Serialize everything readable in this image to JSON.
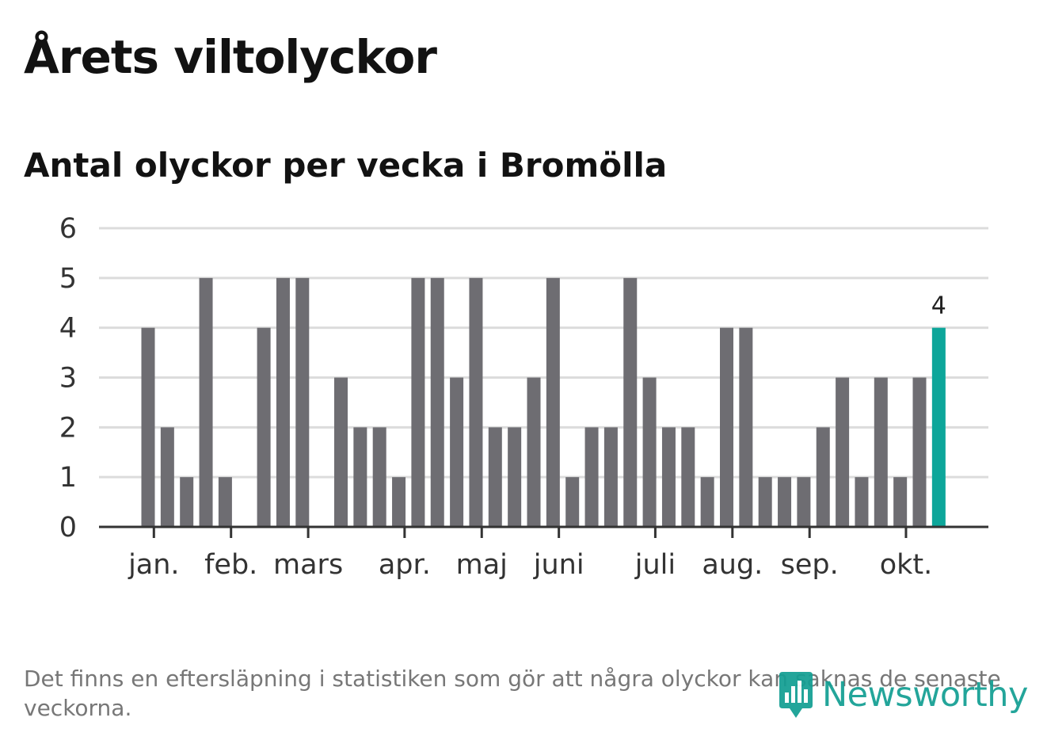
{
  "title": "Årets viltolyckor",
  "subtitle": "Antal olyckor per vecka i Bromölla",
  "footnote": "Det finns en eftersläpning i statistiken som gör att några olyckor kan saknas de senaste veckorna.",
  "brand": {
    "name": "Newsworthy",
    "color": "#139f93",
    "icon": "chart-bubble-icon"
  },
  "colors": {
    "bar": "#6e6d72",
    "highlight": "#0da69a",
    "grid": "#dcdcdc",
    "axis": "#333333"
  },
  "chart_data": {
    "type": "bar",
    "title": "Antal olyckor per vecka i Bromölla",
    "xlabel": "",
    "ylabel": "",
    "ylim": [
      0,
      6
    ],
    "yticks": [
      "0",
      "1",
      "2",
      "3",
      "4",
      "5",
      "6"
    ],
    "week_start": 2,
    "values": [
      4,
      2,
      1,
      5,
      1,
      0,
      4,
      5,
      5,
      0,
      3,
      2,
      2,
      1,
      5,
      5,
      3,
      5,
      2,
      2,
      3,
      5,
      1,
      2,
      2,
      5,
      3,
      2,
      2,
      1,
      4,
      4,
      1,
      1,
      1,
      2,
      3,
      1,
      3,
      1,
      3,
      4
    ],
    "highlight_index": 41,
    "highlight_label": "4",
    "month_ticks": [
      {
        "label": "jan.",
        "week": 2.3
      },
      {
        "label": "feb.",
        "week": 6.3
      },
      {
        "label": "mars",
        "week": 10.3
      },
      {
        "label": "apr.",
        "week": 15.3
      },
      {
        "label": "maj",
        "week": 19.3
      },
      {
        "label": "juni",
        "week": 23.3
      },
      {
        "label": "juli",
        "week": 28.3
      },
      {
        "label": "aug.",
        "week": 32.3
      },
      {
        "label": "sep.",
        "week": 36.3
      },
      {
        "label": "okt.",
        "week": 41.3
      }
    ]
  }
}
